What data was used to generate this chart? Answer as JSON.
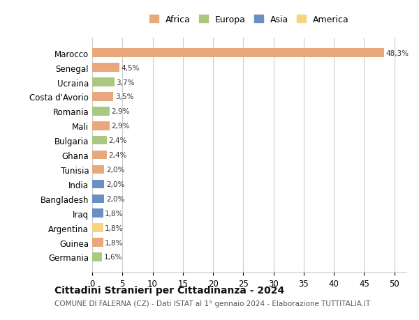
{
  "countries": [
    "Germania",
    "Guinea",
    "Argentina",
    "Iraq",
    "Bangladesh",
    "India",
    "Tunisia",
    "Ghana",
    "Bulgaria",
    "Mali",
    "Romania",
    "Costa d'Avorio",
    "Ucraina",
    "Senegal",
    "Marocco"
  ],
  "values": [
    1.6,
    1.8,
    1.8,
    1.8,
    2.0,
    2.0,
    2.0,
    2.4,
    2.4,
    2.9,
    2.9,
    3.5,
    3.7,
    4.5,
    48.3
  ],
  "labels": [
    "1,6%",
    "1,8%",
    "1,8%",
    "1,8%",
    "2,0%",
    "2,0%",
    "2,0%",
    "2,4%",
    "2,4%",
    "2,9%",
    "2,9%",
    "3,5%",
    "3,7%",
    "4,5%",
    "48,3%"
  ],
  "colors": [
    "#a8c97f",
    "#e8a87c",
    "#f5d580",
    "#6b8fc4",
    "#6b8fc4",
    "#6b8fc4",
    "#e8a87c",
    "#e8a87c",
    "#a8c97f",
    "#e8a87c",
    "#a8c97f",
    "#e8a87c",
    "#a8c97f",
    "#e8a87c",
    "#e8a87c"
  ],
  "continent_colors": {
    "Africa": "#e8a87c",
    "Europa": "#a8c97f",
    "Asia": "#6b8fc4",
    "America": "#f5d580"
  },
  "legend_order": [
    "Africa",
    "Europa",
    "Asia",
    "America"
  ],
  "title": "Cittadini Stranieri per Cittadinanza - 2024",
  "subtitle": "COMUNE DI FALERNA (CZ) - Dati ISTAT al 1° gennaio 2024 - Elaborazione TUTTITALIA.IT",
  "xlim": [
    0,
    52
  ],
  "xticks": [
    0,
    5,
    10,
    15,
    20,
    25,
    30,
    35,
    40,
    45,
    50
  ],
  "background_color": "#ffffff",
  "grid_color": "#cccccc",
  "bar_height": 0.6
}
